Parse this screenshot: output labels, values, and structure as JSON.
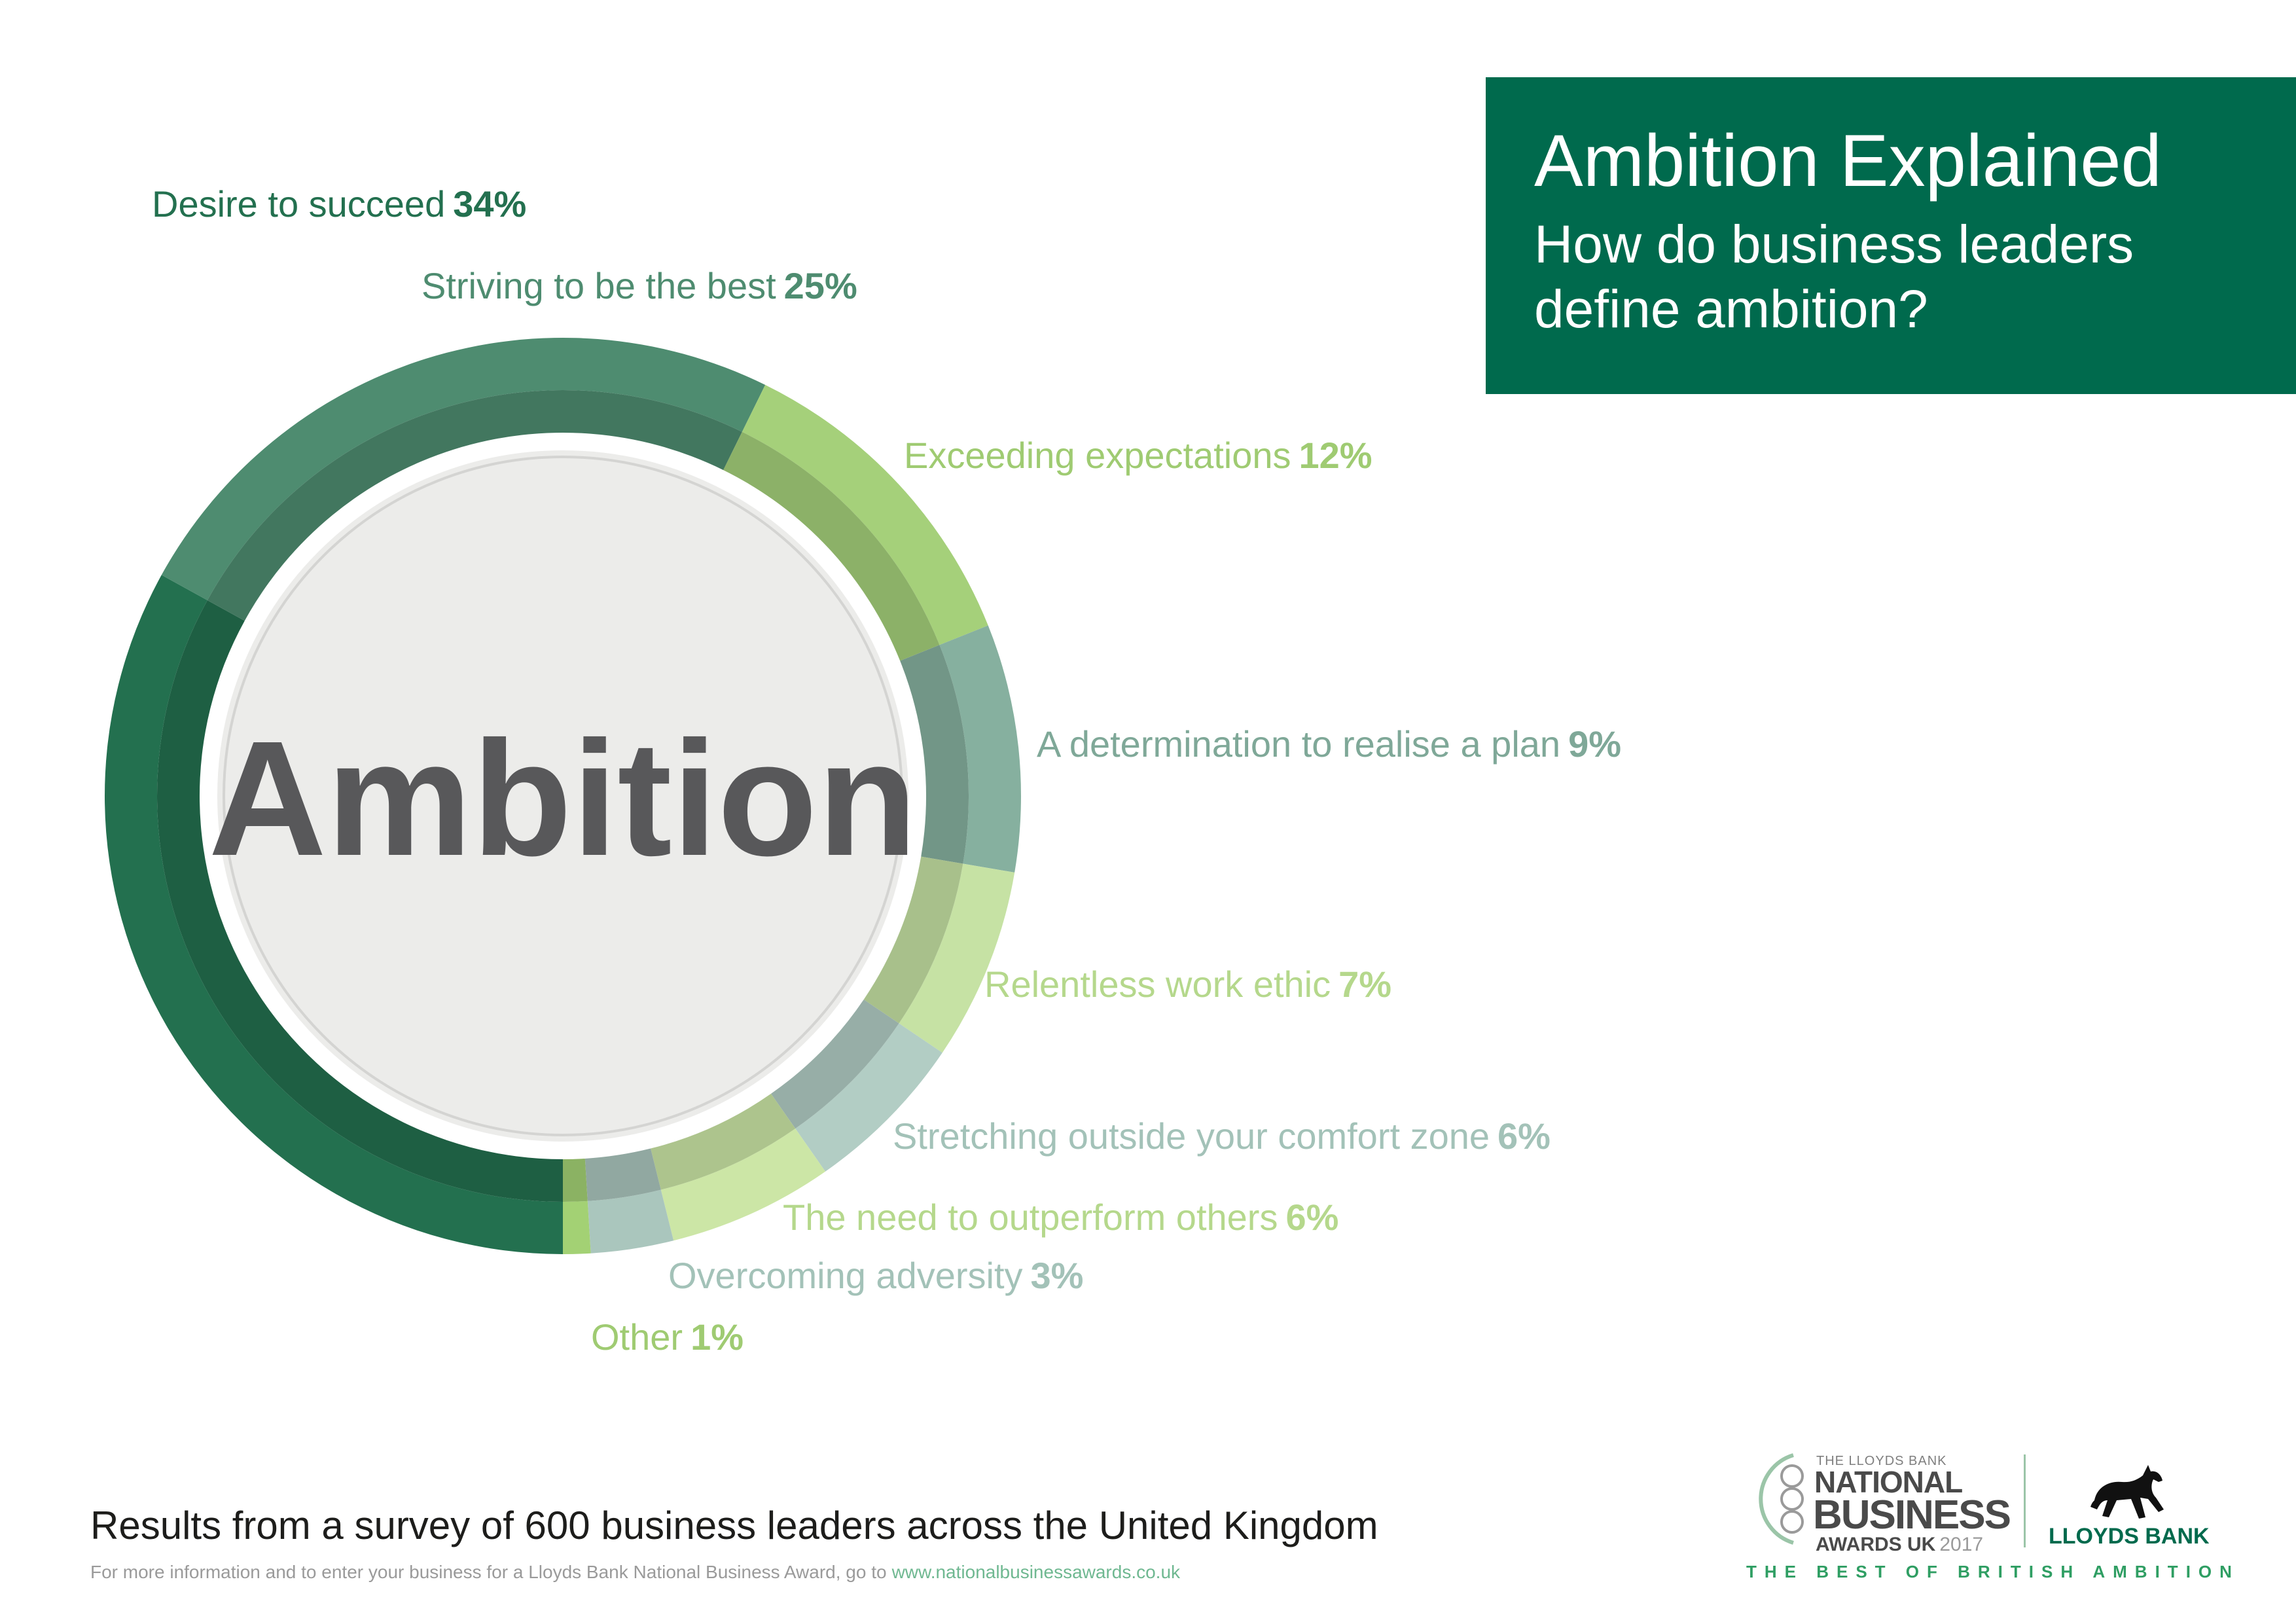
{
  "header": {
    "title": "Ambition Explained",
    "subtitle": "How do business leaders define ambition?"
  },
  "chart_data": {
    "type": "pie",
    "center_label": "Ambition",
    "slices": [
      {
        "label": "Desire to succeed",
        "value": 34,
        "value_label": "34%",
        "color": "#23704f"
      },
      {
        "label": "Striving to be the best",
        "value": 25,
        "value_label": "25%",
        "color": "#4e8c70"
      },
      {
        "label": "Exceeding expectations",
        "value": 12,
        "value_label": "12%",
        "color": "#a5d07a"
      },
      {
        "label": "A determination to realise a plan",
        "value": 9,
        "value_label": "9%",
        "color": "#86b09f"
      },
      {
        "label": "Relentless work ethic",
        "value": 7,
        "value_label": "7%",
        "color": "#c6e2a4"
      },
      {
        "label": "Stretching outside your comfort zone",
        "value": 6,
        "value_label": "6%",
        "color": "#b2cdc4"
      },
      {
        "label": "The need to outperform others",
        "value": 6,
        "value_label": "6%",
        "color": "#cce6a6"
      },
      {
        "label": "Overcoming adversity",
        "value": 3,
        "value_label": "3%",
        "color": "#aac6bd"
      },
      {
        "label": "Other",
        "value": 1,
        "value_label": "1%",
        "color": "#a3d174"
      }
    ]
  },
  "footer": {
    "source": "Results from a survey of 600 business leaders across the United Kingdom",
    "info": "For more information and to enter your business for a Lloyds Bank National Business Award, go to",
    "link": "www.nationalbusinessawards.co.uk"
  },
  "logos": {
    "nba_small": "THE LLOYDS BANK",
    "nba_line1": "NATIONAL",
    "nba_line2": "BUSINESS",
    "nba_line3": "AWARDS UK",
    "nba_year": "2017",
    "bank_name": "LLOYDS BANK",
    "tagline": "THE BEST OF BRITISH AMBITION"
  },
  "colors": {
    "brand_green": "#006a4d",
    "center_fill": "#ececea",
    "center_text": "#58585a"
  }
}
